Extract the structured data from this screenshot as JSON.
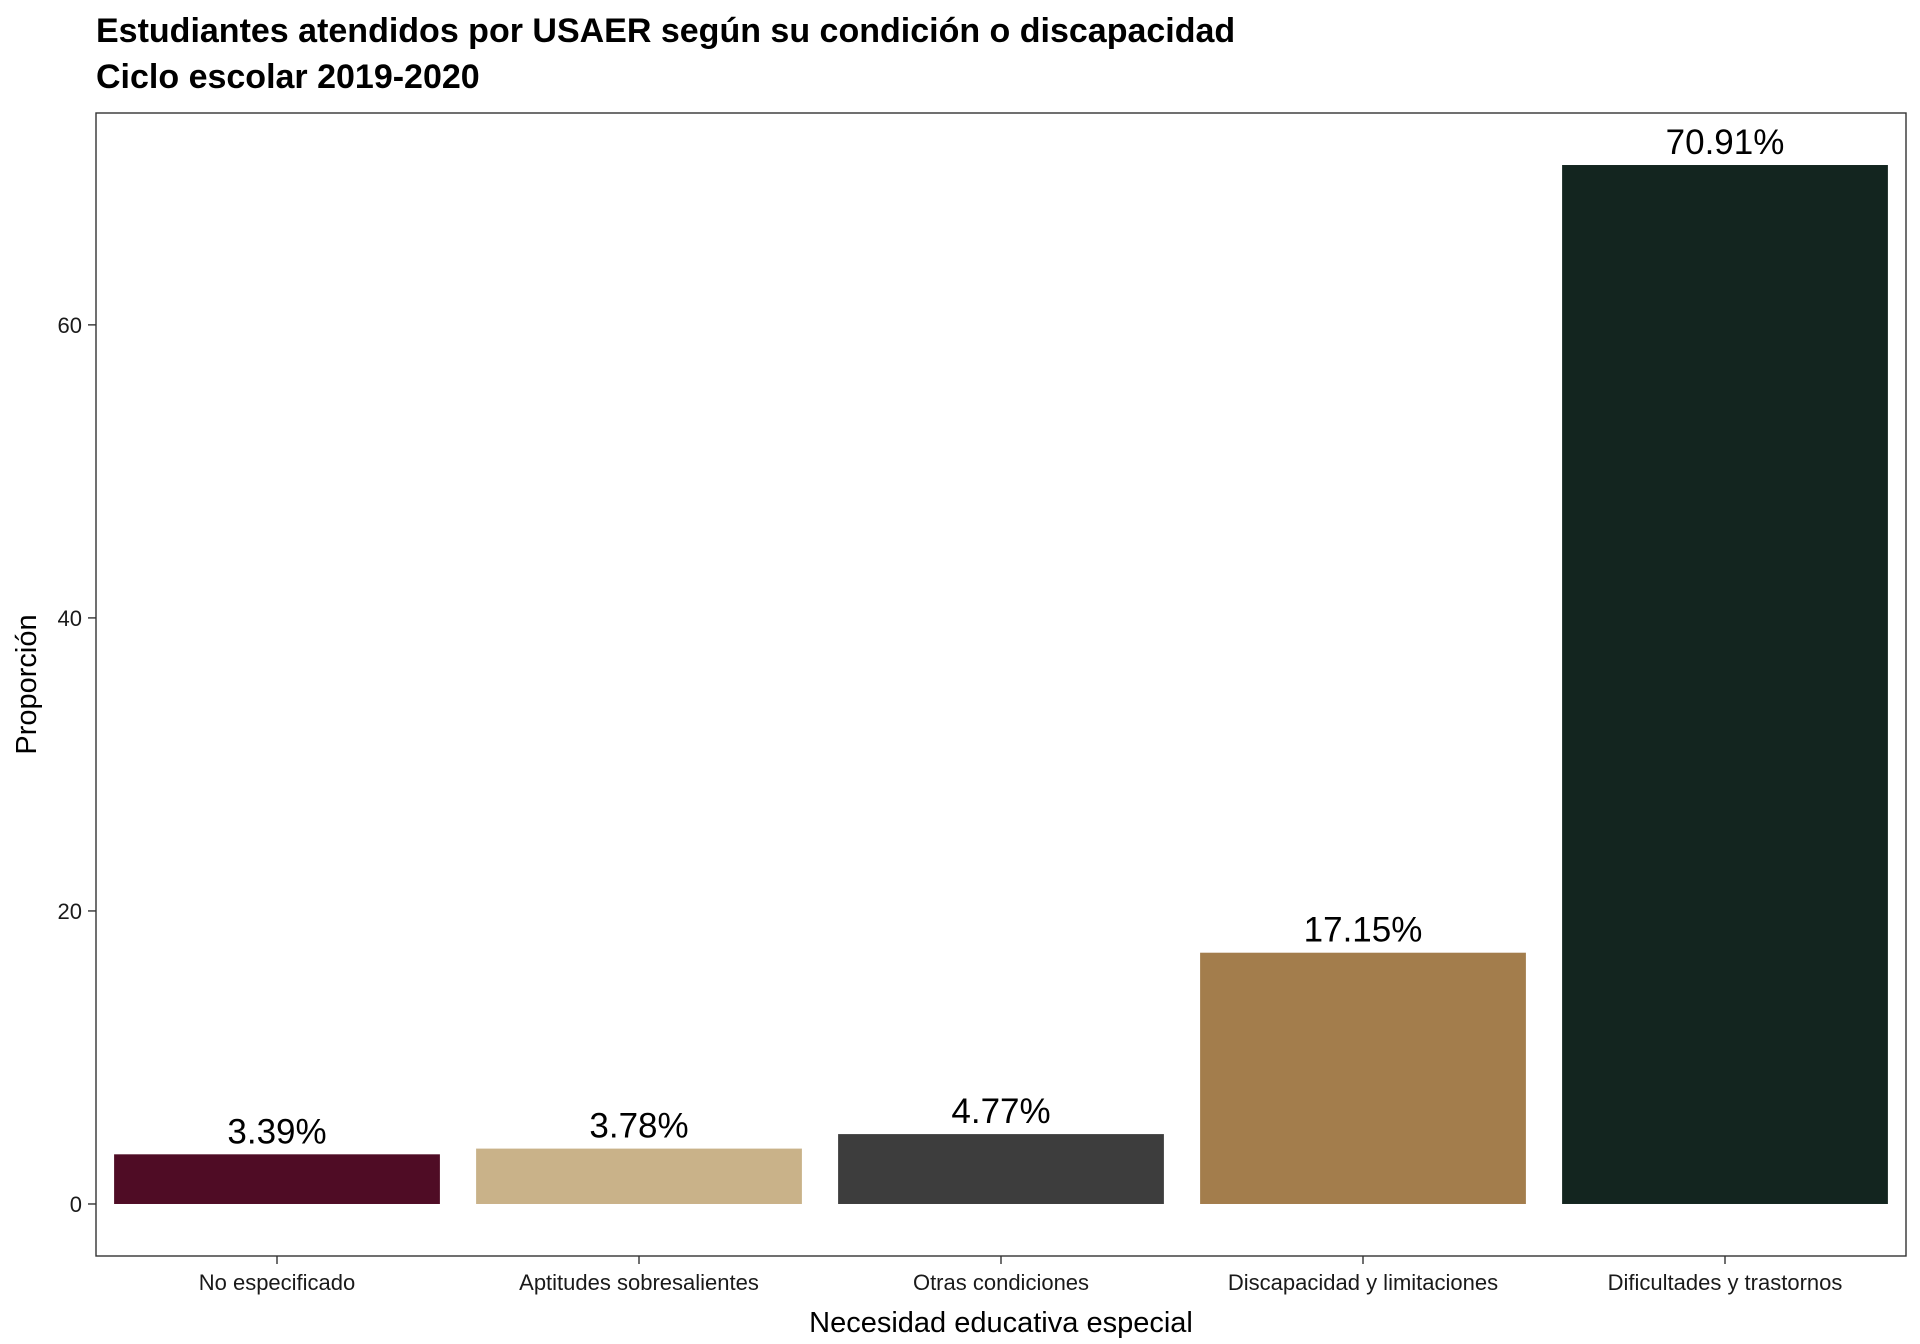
{
  "chart_data": {
    "type": "bar",
    "title": "Estudiantes atendidos por USAER según su condición o discapacidad",
    "subtitle": "Ciclo escolar 2019-2020",
    "xlabel": "Necesidad educativa especial",
    "ylabel": "Proporción",
    "categories": [
      "No especificado",
      "Aptitudes sobresalientes",
      "Otras condiciones",
      "Discapacidad y limitaciones",
      "Dificultades y trastornos"
    ],
    "values": [
      3.39,
      3.78,
      4.77,
      17.15,
      70.91
    ],
    "data_labels": [
      "3.39%",
      "3.78%",
      "4.77%",
      "17.15%",
      "70.91%"
    ],
    "colors": [
      "#4f0c25",
      "#c9b289",
      "#3d3d3d",
      "#a37d4c",
      "#13251f"
    ],
    "yticks": [
      0,
      20,
      40,
      60
    ],
    "ylim": [
      -3.55,
      74.46
    ],
    "grid": false,
    "legend": "none"
  }
}
